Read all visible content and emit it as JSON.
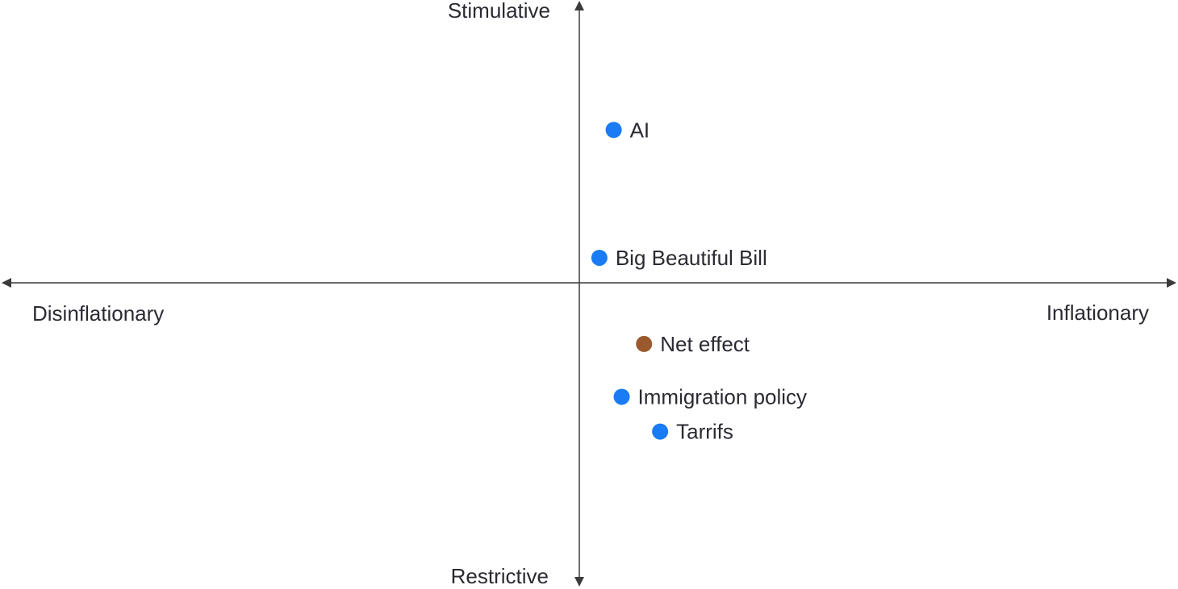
{
  "chart_data": {
    "type": "scatter",
    "title": "",
    "axes": {
      "x_negative_label": "Disinflationary",
      "x_positive_label": "Inflationary",
      "y_positive_label": "Stimulative",
      "y_negative_label": "Restrictive"
    },
    "xlim": [
      -1,
      1
    ],
    "ylim": [
      -1,
      1
    ],
    "grid": false,
    "points": [
      {
        "label": "AI",
        "x": 0.06,
        "y": 0.55,
        "color": "#1a7cf5"
      },
      {
        "label": "Big Beautiful Bill",
        "x": 0.035,
        "y": 0.09,
        "color": "#1a7cf5"
      },
      {
        "label": "Net effect",
        "x": 0.113,
        "y": -0.22,
        "color": "#9a5a2e"
      },
      {
        "label": "Immigration policy",
        "x": 0.074,
        "y": -0.41,
        "color": "#1a7cf5"
      },
      {
        "label": "Tarrifs",
        "x": 0.141,
        "y": -0.535,
        "color": "#1a7cf5"
      }
    ]
  },
  "colors": {
    "axis": "#3b3b3b",
    "text": "#2a2a33"
  }
}
